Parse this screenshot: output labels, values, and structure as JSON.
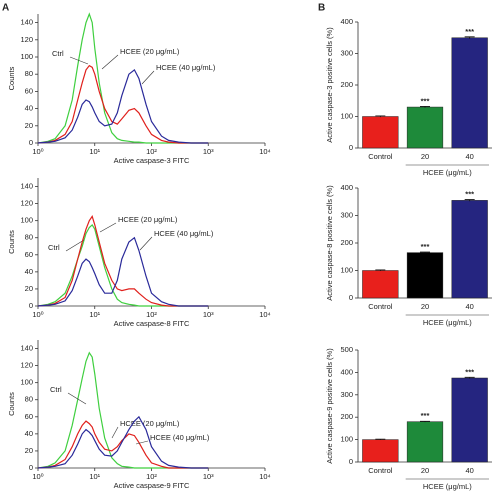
{
  "panels": [
    "A",
    "B"
  ],
  "chart_data": [
    {
      "type": "line",
      "xscale": "log",
      "xlabel": "Active caspase-3 FITC",
      "ylabel": "Counts",
      "x": [
        1,
        1.5,
        2,
        3,
        4,
        5,
        6,
        7,
        8,
        9,
        10,
        12,
        15,
        20,
        25,
        30,
        40,
        50,
        60,
        80,
        100,
        150,
        200,
        300,
        500,
        1000
      ],
      "xlim": [
        1,
        10000
      ],
      "xticks": [
        {
          "value": 1,
          "label": "10⁰"
        },
        {
          "value": 10,
          "label": "10¹"
        },
        {
          "value": 100,
          "label": "10²"
        },
        {
          "value": 1000,
          "label": "10³"
        },
        {
          "value": 10000,
          "label": "10⁴"
        }
      ],
      "ylim": [
        0,
        150
      ],
      "yticks": [
        0,
        20,
        40,
        60,
        80,
        100,
        120,
        140
      ],
      "series": [
        {
          "name": "Ctrl",
          "color": "#3fcf3f",
          "values": [
            0,
            2,
            5,
            20,
            50,
            90,
            120,
            140,
            150,
            140,
            110,
            70,
            35,
            12,
            5,
            3,
            2,
            1,
            1,
            0,
            0,
            0,
            0,
            0,
            0,
            0
          ]
        },
        {
          "name": "HCEE (20 μg/mL)",
          "color": "#e0201c",
          "values": [
            0,
            1,
            3,
            10,
            25,
            50,
            70,
            85,
            90,
            88,
            80,
            60,
            40,
            25,
            22,
            28,
            38,
            40,
            35,
            20,
            10,
            3,
            1,
            0,
            0,
            0
          ]
        },
        {
          "name": "HCEE (40 μg/mL)",
          "color": "#2a2a9a",
          "values": [
            0,
            1,
            2,
            6,
            15,
            30,
            45,
            50,
            48,
            42,
            35,
            25,
            20,
            22,
            35,
            55,
            80,
            85,
            75,
            45,
            25,
            8,
            3,
            1,
            0,
            0
          ]
        }
      ]
    },
    {
      "type": "line",
      "xscale": "log",
      "xlabel": "Active caspase-8 FITC",
      "ylabel": "Counts",
      "x": [
        1,
        1.5,
        2,
        3,
        4,
        5,
        6,
        7,
        8,
        9,
        10,
        12,
        15,
        20,
        25,
        30,
        40,
        50,
        60,
        80,
        100,
        150,
        200,
        300,
        500,
        1000
      ],
      "xlim": [
        1,
        10000
      ],
      "xticks": [
        {
          "value": 1,
          "label": "10⁰"
        },
        {
          "value": 10,
          "label": "10¹"
        },
        {
          "value": 100,
          "label": "10²"
        },
        {
          "value": 1000,
          "label": "10³"
        },
        {
          "value": 10000,
          "label": "10⁴"
        }
      ],
      "ylim": [
        0,
        150
      ],
      "yticks": [
        0,
        20,
        40,
        60,
        80,
        100,
        120,
        140
      ],
      "series": [
        {
          "name": "Ctrl",
          "color": "#3fcf3f",
          "values": [
            0,
            2,
            5,
            15,
            35,
            55,
            70,
            85,
            92,
            95,
            90,
            70,
            45,
            20,
            8,
            4,
            2,
            1,
            0,
            0,
            0,
            0,
            0,
            0,
            0,
            0
          ]
        },
        {
          "name": "HCEE (20 μg/mL)",
          "color": "#e0201c",
          "values": [
            0,
            1,
            3,
            10,
            30,
            55,
            75,
            90,
            100,
            105,
            95,
            75,
            50,
            30,
            20,
            18,
            20,
            20,
            15,
            8,
            4,
            1,
            0,
            0,
            0,
            0
          ]
        },
        {
          "name": "HCEE (40 μg/mL)",
          "color": "#2a2a9a",
          "values": [
            0,
            1,
            2,
            6,
            18,
            35,
            50,
            55,
            52,
            45,
            38,
            25,
            15,
            15,
            30,
            55,
            75,
            80,
            65,
            35,
            15,
            5,
            2,
            0,
            0,
            0
          ]
        }
      ]
    },
    {
      "type": "line",
      "xscale": "log",
      "xlabel": "Active caspase-9 FITC",
      "ylabel": "Counts",
      "x": [
        1,
        1.5,
        2,
        3,
        4,
        5,
        6,
        7,
        8,
        9,
        10,
        12,
        15,
        20,
        25,
        30,
        40,
        50,
        60,
        80,
        100,
        150,
        200,
        300,
        500,
        1000
      ],
      "xlim": [
        1,
        10000
      ],
      "xticks": [
        {
          "value": 1,
          "label": "10⁰"
        },
        {
          "value": 10,
          "label": "10¹"
        },
        {
          "value": 100,
          "label": "10²"
        },
        {
          "value": 1000,
          "label": "10³"
        },
        {
          "value": 10000,
          "label": "10⁴"
        }
      ],
      "ylim": [
        0,
        150
      ],
      "yticks": [
        0,
        20,
        40,
        60,
        80,
        100,
        120,
        140
      ],
      "series": [
        {
          "name": "Ctrl",
          "color": "#3fcf3f",
          "values": [
            0,
            2,
            6,
            20,
            50,
            80,
            105,
            125,
            135,
            130,
            110,
            70,
            35,
            12,
            5,
            2,
            1,
            0,
            0,
            0,
            0,
            0,
            0,
            0,
            0,
            0
          ]
        },
        {
          "name": "HCEE (20 μg/mL)",
          "color": "#e0201c",
          "values": [
            0,
            1,
            3,
            10,
            25,
            40,
            50,
            55,
            52,
            48,
            40,
            30,
            22,
            20,
            25,
            32,
            40,
            38,
            30,
            15,
            6,
            2,
            0,
            0,
            0,
            0
          ]
        },
        {
          "name": "HCEE (40 μg/mL)",
          "color": "#2a2a9a",
          "values": [
            0,
            1,
            2,
            5,
            15,
            28,
            40,
            45,
            42,
            38,
            32,
            22,
            15,
            14,
            20,
            30,
            45,
            55,
            60,
            45,
            25,
            8,
            3,
            1,
            0,
            0
          ]
        }
      ]
    },
    {
      "type": "bar",
      "ylabel": "Active caspase-3 positive cells (%)",
      "categories": [
        "Control",
        "20",
        "40"
      ],
      "values": [
        100,
        130,
        350
      ],
      "errors": [
        2,
        2,
        3
      ],
      "colors": [
        "#e8201c",
        "#1e8a3a",
        "#252580"
      ],
      "significance": [
        null,
        "***",
        "***"
      ],
      "group_label": "HCEE (μg/mL)",
      "ylim": [
        0,
        400
      ],
      "yticks": [
        0,
        100,
        200,
        300,
        400
      ]
    },
    {
      "type": "bar",
      "ylabel": "Active caspase-8 positive cells (%)",
      "categories": [
        "Control",
        "20",
        "40"
      ],
      "values": [
        100,
        165,
        355
      ],
      "errors": [
        2,
        2,
        3
      ],
      "colors": [
        "#e8201c",
        "#000000",
        "#252580"
      ],
      "significance": [
        null,
        "***",
        "***"
      ],
      "group_label": "HCEE (μg/mL)",
      "ylim": [
        0,
        400
      ],
      "yticks": [
        0,
        100,
        200,
        300,
        400
      ]
    },
    {
      "type": "bar",
      "ylabel": "Active caspase-9 positive cells (%)",
      "categories": [
        "Control",
        "20",
        "40"
      ],
      "values": [
        100,
        180,
        375
      ],
      "errors": [
        2,
        2,
        3
      ],
      "colors": [
        "#e8201c",
        "#1e8a3a",
        "#252580"
      ],
      "significance": [
        null,
        "***",
        "***"
      ],
      "group_label": "HCEE (μg/mL)",
      "ylim": [
        0,
        500
      ],
      "yticks": [
        0,
        100,
        200,
        300,
        400,
        500
      ]
    }
  ]
}
